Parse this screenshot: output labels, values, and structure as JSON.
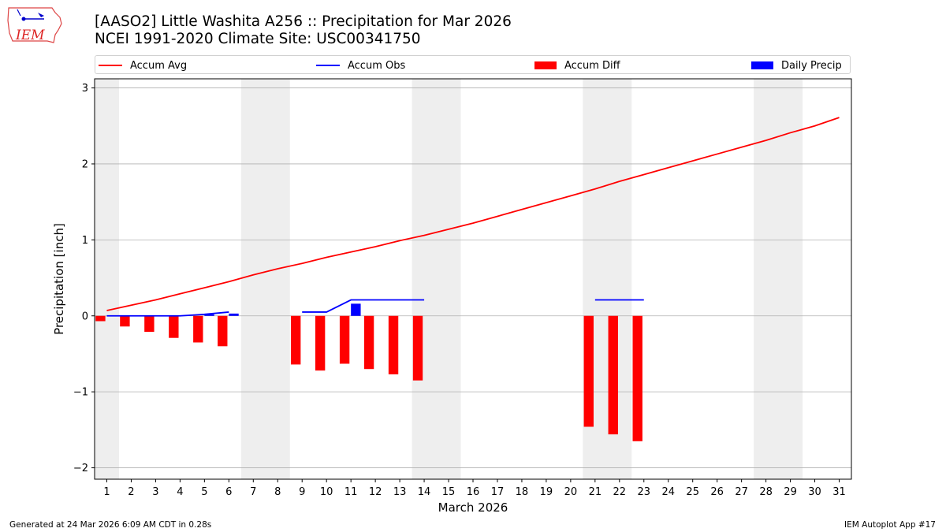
{
  "title": {
    "line1": "[AASO2] Little Washita A256 :: Precipitation for Mar 2026",
    "line2": "NCEI 1991-2020 Climate Site: USC00341750"
  },
  "logo": {
    "text": "IEM"
  },
  "legend": {
    "avg": "Accum Avg",
    "obs": "Accum Obs",
    "diff": "Accum Diff",
    "daily": "Daily Precip"
  },
  "footer": {
    "left": "Generated at 24 Mar 2026 6:09 AM CDT in 0.28s",
    "right": "IEM Autoplot App #17"
  },
  "colors": {
    "avg": "#ff0000",
    "obs": "#0000ff",
    "diff": "#ff0000",
    "daily": "#0000ff",
    "weekend": "#eeeeee",
    "grid": "#b0b0b0"
  },
  "chart_data": {
    "type": "bar",
    "xlabel": "March 2026",
    "ylabel": "Precipitation [inch]",
    "xlim": [
      0.5,
      31.5
    ],
    "ylim": [
      -2.15,
      3.12
    ],
    "yticks": [
      -2,
      -1,
      0,
      1,
      2,
      3
    ],
    "ytick_labels": [
      "−2",
      "−1",
      "0",
      "1",
      "2",
      "3"
    ],
    "xticks": [
      1,
      2,
      3,
      4,
      5,
      6,
      7,
      8,
      9,
      10,
      11,
      12,
      13,
      14,
      15,
      16,
      17,
      18,
      19,
      20,
      21,
      22,
      23,
      24,
      25,
      26,
      27,
      28,
      29,
      30,
      31
    ],
    "grid": "horizontal",
    "weekend_spans": [
      [
        0.5,
        1.5
      ],
      [
        6.5,
        8.5
      ],
      [
        13.5,
        15.5
      ],
      [
        20.5,
        22.5
      ],
      [
        27.5,
        29.5
      ]
    ],
    "series": [
      {
        "name": "Accum Avg",
        "kind": "line",
        "x": [
          1,
          2,
          3,
          4,
          5,
          6,
          7,
          8,
          9,
          10,
          11,
          12,
          13,
          14,
          15,
          16,
          17,
          18,
          19,
          20,
          21,
          22,
          23,
          24,
          25,
          26,
          27,
          28,
          29,
          30,
          31
        ],
        "values": [
          0.07,
          0.14,
          0.21,
          0.29,
          0.37,
          0.45,
          0.54,
          0.62,
          0.69,
          0.77,
          0.84,
          0.91,
          0.99,
          1.06,
          1.14,
          1.22,
          1.31,
          1.4,
          1.49,
          1.58,
          1.67,
          1.77,
          1.86,
          1.95,
          2.04,
          2.13,
          2.22,
          2.31,
          2.41,
          2.5,
          2.61
        ]
      },
      {
        "name": "Accum Obs",
        "kind": "line",
        "segments": [
          {
            "x": [
              1,
              2,
              3,
              4,
              5,
              6
            ],
            "values": [
              0.0,
              0.0,
              0.0,
              0.0,
              0.02,
              0.05
            ]
          },
          {
            "x": [
              9,
              10,
              11,
              12,
              13,
              14
            ],
            "values": [
              0.05,
              0.05,
              0.21,
              0.21,
              0.21,
              0.21
            ]
          },
          {
            "x": [
              21,
              22,
              23
            ],
            "values": [
              0.21,
              0.21,
              0.21
            ]
          }
        ]
      },
      {
        "name": "Accum Diff",
        "kind": "bar",
        "x": [
          1,
          2,
          3,
          4,
          5,
          6,
          9,
          10,
          11,
          12,
          13,
          14,
          21,
          22,
          23
        ],
        "values": [
          -0.07,
          -0.14,
          -0.21,
          -0.29,
          -0.35,
          -0.4,
          -0.64,
          -0.72,
          -0.63,
          -0.7,
          -0.77,
          -0.85,
          -1.46,
          -1.56,
          -1.65
        ]
      },
      {
        "name": "Daily Precip",
        "kind": "bar",
        "x": [
          5,
          6,
          11
        ],
        "values": [
          0.02,
          0.03,
          0.16
        ]
      }
    ]
  }
}
